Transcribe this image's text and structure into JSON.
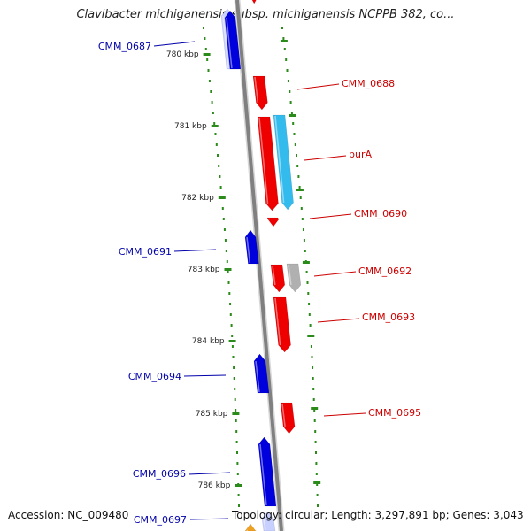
{
  "title": "Clavibacter michiganensis subsp. michiganensis NCPPB 382, co...",
  "footer": {
    "accession": "Accession: NC_009480",
    "topology": "Topology: circular; Length: 3,297,891 bp; Genes: 3,043"
  },
  "colors": {
    "backbone": "#808080",
    "ruler": "#2a8a1a",
    "forward": "#ee0000",
    "reverse": "#0000dd",
    "highlight": "#33bbee",
    "gray_gene": "#b0b0b0",
    "pale": "#c8d0ff",
    "orange": "#f0a020",
    "forward_label": "#cc0000",
    "reverse_label": "#0000aa"
  },
  "ruler_ticks": [
    "780 kbp",
    "781 kbp",
    "782 kbp",
    "783 kbp",
    "784 kbp",
    "785 kbp",
    "786 kbp"
  ],
  "gene_labels": [
    {
      "text": "CMM_0687",
      "strand": "reverse"
    },
    {
      "text": "CMM_0688",
      "strand": "forward"
    },
    {
      "text": "purA",
      "strand": "forward"
    },
    {
      "text": "CMM_0690",
      "strand": "forward"
    },
    {
      "text": "CMM_0691",
      "strand": "reverse"
    },
    {
      "text": "CMM_0692",
      "strand": "forward"
    },
    {
      "text": "CMM_0693",
      "strand": "forward"
    },
    {
      "text": "CMM_0694",
      "strand": "reverse"
    },
    {
      "text": "CMM_0695",
      "strand": "forward"
    },
    {
      "text": "CMM_0696",
      "strand": "reverse"
    },
    {
      "text": "CMM_0697",
      "strand": "reverse"
    }
  ]
}
